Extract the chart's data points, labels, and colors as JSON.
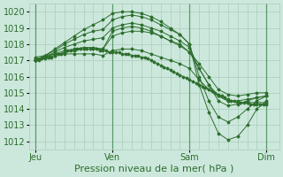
{
  "title": "Pression niveau de la mer( hPa )",
  "bg_color": "#cce8dc",
  "grid_color": "#aaccbc",
  "line_color": "#2d6e2d",
  "ylim": [
    1011.5,
    1020.5
  ],
  "yticks": [
    1012,
    1013,
    1014,
    1015,
    1016,
    1017,
    1018,
    1019,
    1020
  ],
  "xtick_labels": [
    "Jeu",
    "Ven",
    "Sam",
    "Dim"
  ],
  "xtick_positions": [
    0,
    24,
    48,
    72
  ],
  "xlim": [
    -2,
    76
  ],
  "vlines": [
    0,
    24,
    48,
    72
  ],
  "series": [
    {
      "x": [
        0,
        1,
        2,
        3,
        4,
        5,
        6,
        7,
        8,
        9,
        10,
        11,
        12,
        13,
        14,
        15,
        16,
        17,
        18,
        19,
        20,
        21,
        22,
        23,
        24,
        25,
        26,
        27,
        28,
        29,
        30,
        31,
        32,
        33,
        34,
        35,
        36,
        37,
        38,
        39,
        40,
        41,
        42,
        43,
        44,
        45,
        46,
        47,
        48,
        49,
        50,
        51,
        52,
        53,
        54,
        55,
        56,
        57,
        58,
        59,
        60,
        61,
        62,
        63,
        64,
        65,
        66,
        67,
        68,
        69,
        70,
        71,
        72
      ],
      "y": [
        1017.0,
        1017.0,
        1017.1,
        1017.1,
        1017.2,
        1017.2,
        1017.3,
        1017.4,
        1017.4,
        1017.5,
        1017.6,
        1017.6,
        1017.6,
        1017.7,
        1017.7,
        1017.7,
        1017.7,
        1017.7,
        1017.7,
        1017.7,
        1017.6,
        1017.6,
        1017.6,
        1017.5,
        1017.5,
        1017.5,
        1017.5,
        1017.4,
        1017.4,
        1017.4,
        1017.3,
        1017.3,
        1017.3,
        1017.2,
        1017.2,
        1017.1,
        1017.0,
        1016.9,
        1016.8,
        1016.7,
        1016.6,
        1016.5,
        1016.4,
        1016.3,
        1016.2,
        1016.1,
        1016.0,
        1015.9,
        1015.8,
        1015.7,
        1015.6,
        1015.5,
        1015.4,
        1015.3,
        1015.2,
        1015.1,
        1015.0,
        1014.9,
        1014.8,
        1014.7,
        1014.6,
        1014.5,
        1014.5,
        1014.4,
        1014.4,
        1014.4,
        1014.4,
        1014.3,
        1014.3,
        1014.3,
        1014.3,
        1014.3,
        1014.3
      ]
    },
    {
      "x": [
        0,
        3,
        6,
        9,
        12,
        15,
        18,
        21,
        24,
        27,
        30,
        33,
        36,
        39,
        42,
        45,
        48,
        51,
        54,
        57,
        60,
        63,
        66,
        69,
        72
      ],
      "y": [
        1017.0,
        1017.2,
        1017.4,
        1017.6,
        1017.7,
        1017.8,
        1017.8,
        1017.7,
        1018.5,
        1018.7,
        1018.8,
        1018.8,
        1018.7,
        1018.5,
        1018.2,
        1018.0,
        1017.5,
        1016.8,
        1016.0,
        1015.2,
        1014.9,
        1014.8,
        1014.9,
        1015.0,
        1015.0
      ]
    },
    {
      "x": [
        0,
        3,
        6,
        9,
        12,
        15,
        18,
        21,
        24,
        27,
        30,
        33,
        36,
        39,
        42,
        45,
        48,
        51,
        54,
        57,
        60,
        63,
        66,
        69,
        72
      ],
      "y": [
        1017.0,
        1017.2,
        1017.5,
        1017.8,
        1018.0,
        1018.2,
        1018.3,
        1018.4,
        1019.0,
        1019.2,
        1019.3,
        1019.2,
        1019.0,
        1018.8,
        1018.5,
        1018.2,
        1017.8,
        1016.5,
        1015.5,
        1014.8,
        1014.5,
        1014.5,
        1014.6,
        1014.7,
        1014.8
      ]
    },
    {
      "x": [
        0,
        3,
        6,
        9,
        12,
        15,
        18,
        21,
        24,
        27,
        30,
        33,
        36,
        39,
        42,
        45,
        48,
        51,
        54,
        57,
        60,
        63,
        66,
        69,
        72
      ],
      "y": [
        1017.0,
        1017.3,
        1017.6,
        1018.0,
        1018.3,
        1018.6,
        1018.8,
        1018.9,
        1019.5,
        1019.7,
        1019.8,
        1019.7,
        1019.5,
        1019.2,
        1018.9,
        1018.6,
        1018.0,
        1016.0,
        1014.5,
        1013.5,
        1013.2,
        1013.5,
        1014.0,
        1014.5,
        1014.8
      ]
    },
    {
      "x": [
        0,
        3,
        6,
        9,
        12,
        15,
        18,
        21,
        24,
        27,
        30,
        33,
        36,
        39,
        42,
        45,
        48,
        51,
        54,
        57,
        60,
        63,
        66,
        69,
        72
      ],
      "y": [
        1017.0,
        1017.3,
        1017.7,
        1018.1,
        1018.5,
        1018.9,
        1019.2,
        1019.5,
        1019.9,
        1020.0,
        1020.0,
        1019.9,
        1019.7,
        1019.4,
        1019.0,
        1018.6,
        1018.0,
        1015.5,
        1013.8,
        1012.5,
        1012.1,
        1012.3,
        1013.0,
        1014.0,
        1014.5
      ]
    },
    {
      "x": [
        0,
        3,
        6,
        9,
        12,
        15,
        18,
        21,
        24,
        27,
        30,
        33,
        36,
        39,
        42,
        45,
        48,
        51,
        54,
        57,
        60,
        63,
        66,
        69,
        72
      ],
      "y": [
        1017.1,
        1017.2,
        1017.3,
        1017.5,
        1017.6,
        1017.7,
        1017.7,
        1017.7,
        1018.8,
        1019.0,
        1019.1,
        1019.0,
        1018.8,
        1018.5,
        1018.2,
        1017.9,
        1017.5,
        1016.5,
        1015.5,
        1014.5,
        1014.2,
        1014.3,
        1014.5,
        1014.7,
        1014.8
      ]
    },
    {
      "x": [
        0,
        3,
        6,
        9,
        12,
        15,
        18,
        21,
        24,
        27,
        30,
        33,
        36,
        39,
        42,
        45,
        48,
        51,
        54,
        57,
        60,
        63,
        66,
        69,
        72
      ],
      "y": [
        1017.2,
        1017.3,
        1017.4,
        1017.4,
        1017.4,
        1017.4,
        1017.4,
        1017.3,
        1017.6,
        1017.7,
        1017.7,
        1017.6,
        1017.4,
        1017.2,
        1017.0,
        1016.8,
        1016.5,
        1015.8,
        1015.2,
        1014.8,
        1014.5,
        1014.4,
        1014.4,
        1014.4,
        1014.4
      ]
    }
  ],
  "title_fontsize": 8,
  "tick_fontsize": 7
}
